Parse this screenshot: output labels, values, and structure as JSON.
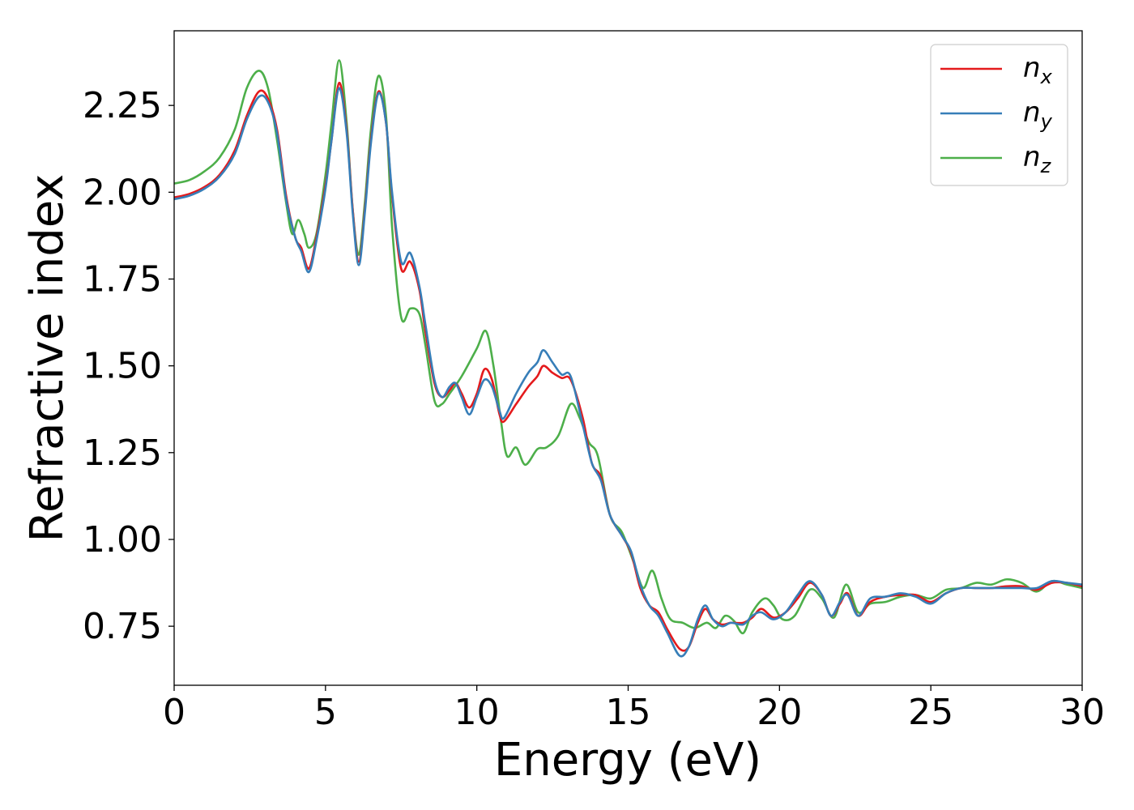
{
  "chart_data": {
    "type": "line",
    "title": "",
    "xlabel": "Energy (eV)",
    "ylabel": "Refractive index",
    "xlim": [
      0,
      30
    ],
    "ylim": [
      0.58,
      2.465
    ],
    "xticks": [
      0,
      5,
      10,
      15,
      20,
      25,
      30
    ],
    "xtick_labels": [
      "0",
      "5",
      "10",
      "15",
      "20",
      "25",
      "30"
    ],
    "yticks": [
      0.75,
      1.0,
      1.25,
      1.5,
      1.75,
      2.0,
      2.25
    ],
    "ytick_labels": [
      "0.75",
      "1.00",
      "1.25",
      "1.50",
      "1.75",
      "2.00",
      "2.25"
    ],
    "grid": false,
    "legend_position": "top-right",
    "series": [
      {
        "name": "n_x",
        "label_base": "n",
        "label_sub": "x",
        "color": "#e41a1c",
        "points": [
          [
            0,
            1.985
          ],
          [
            0.5,
            1.995
          ],
          [
            1.0,
            2.015
          ],
          [
            1.5,
            2.05
          ],
          [
            2.0,
            2.12
          ],
          [
            2.4,
            2.22
          ],
          [
            2.8,
            2.29
          ],
          [
            3.1,
            2.27
          ],
          [
            3.4,
            2.18
          ],
          [
            3.7,
            1.99
          ],
          [
            4.0,
            1.87
          ],
          [
            4.2,
            1.84
          ],
          [
            4.45,
            1.78
          ],
          [
            4.7,
            1.87
          ],
          [
            5.0,
            2.02
          ],
          [
            5.2,
            2.15
          ],
          [
            5.45,
            2.315
          ],
          [
            5.7,
            2.18
          ],
          [
            5.9,
            1.95
          ],
          [
            6.1,
            1.8
          ],
          [
            6.3,
            1.95
          ],
          [
            6.5,
            2.15
          ],
          [
            6.75,
            2.29
          ],
          [
            7.0,
            2.2
          ],
          [
            7.2,
            1.99
          ],
          [
            7.5,
            1.78
          ],
          [
            7.8,
            1.8
          ],
          [
            8.1,
            1.72
          ],
          [
            8.3,
            1.6
          ],
          [
            8.6,
            1.45
          ],
          [
            8.85,
            1.41
          ],
          [
            9.1,
            1.43
          ],
          [
            9.3,
            1.45
          ],
          [
            9.5,
            1.42
          ],
          [
            9.75,
            1.38
          ],
          [
            10.0,
            1.42
          ],
          [
            10.25,
            1.49
          ],
          [
            10.5,
            1.46
          ],
          [
            10.75,
            1.36
          ],
          [
            10.9,
            1.34
          ],
          [
            11.3,
            1.39
          ],
          [
            11.7,
            1.44
          ],
          [
            12.0,
            1.47
          ],
          [
            12.2,
            1.5
          ],
          [
            12.5,
            1.48
          ],
          [
            12.8,
            1.465
          ],
          [
            13.1,
            1.46
          ],
          [
            13.5,
            1.35
          ],
          [
            13.8,
            1.22
          ],
          [
            14.1,
            1.18
          ],
          [
            14.4,
            1.07
          ],
          [
            14.8,
            1.01
          ],
          [
            15.1,
            0.96
          ],
          [
            15.4,
            0.86
          ],
          [
            15.7,
            0.81
          ],
          [
            16.0,
            0.79
          ],
          [
            16.3,
            0.74
          ],
          [
            16.7,
            0.685
          ],
          [
            17.0,
            0.69
          ],
          [
            17.3,
            0.76
          ],
          [
            17.55,
            0.8
          ],
          [
            17.8,
            0.77
          ],
          [
            18.1,
            0.755
          ],
          [
            18.4,
            0.76
          ],
          [
            18.8,
            0.76
          ],
          [
            19.1,
            0.775
          ],
          [
            19.4,
            0.8
          ],
          [
            19.8,
            0.775
          ],
          [
            20.2,
            0.79
          ],
          [
            20.6,
            0.83
          ],
          [
            21.0,
            0.875
          ],
          [
            21.4,
            0.84
          ],
          [
            21.7,
            0.78
          ],
          [
            22.0,
            0.815
          ],
          [
            22.25,
            0.845
          ],
          [
            22.6,
            0.78
          ],
          [
            23.0,
            0.82
          ],
          [
            23.5,
            0.835
          ],
          [
            24.0,
            0.84
          ],
          [
            24.5,
            0.84
          ],
          [
            25.0,
            0.82
          ],
          [
            25.5,
            0.845
          ],
          [
            26.0,
            0.86
          ],
          [
            26.5,
            0.86
          ],
          [
            27.0,
            0.86
          ],
          [
            27.5,
            0.865
          ],
          [
            28.0,
            0.865
          ],
          [
            28.5,
            0.855
          ],
          [
            29.0,
            0.875
          ],
          [
            29.5,
            0.875
          ],
          [
            30.0,
            0.865
          ]
        ]
      },
      {
        "name": "n_y",
        "label_base": "n",
        "label_sub": "y",
        "color": "#377eb8",
        "points": [
          [
            0,
            1.98
          ],
          [
            0.5,
            1.99
          ],
          [
            1.0,
            2.01
          ],
          [
            1.5,
            2.045
          ],
          [
            2.0,
            2.11
          ],
          [
            2.4,
            2.21
          ],
          [
            2.8,
            2.275
          ],
          [
            3.1,
            2.26
          ],
          [
            3.4,
            2.17
          ],
          [
            3.7,
            1.98
          ],
          [
            4.0,
            1.87
          ],
          [
            4.2,
            1.83
          ],
          [
            4.45,
            1.77
          ],
          [
            4.7,
            1.86
          ],
          [
            5.0,
            2.01
          ],
          [
            5.2,
            2.15
          ],
          [
            5.45,
            2.3
          ],
          [
            5.7,
            2.17
          ],
          [
            5.9,
            1.94
          ],
          [
            6.1,
            1.79
          ],
          [
            6.3,
            1.94
          ],
          [
            6.5,
            2.14
          ],
          [
            6.75,
            2.285
          ],
          [
            7.0,
            2.2
          ],
          [
            7.2,
            2.0
          ],
          [
            7.5,
            1.8
          ],
          [
            7.8,
            1.825
          ],
          [
            8.1,
            1.73
          ],
          [
            8.3,
            1.62
          ],
          [
            8.6,
            1.46
          ],
          [
            8.85,
            1.41
          ],
          [
            9.1,
            1.44
          ],
          [
            9.3,
            1.45
          ],
          [
            9.5,
            1.41
          ],
          [
            9.75,
            1.36
          ],
          [
            10.0,
            1.41
          ],
          [
            10.25,
            1.46
          ],
          [
            10.5,
            1.44
          ],
          [
            10.75,
            1.37
          ],
          [
            10.9,
            1.35
          ],
          [
            11.3,
            1.42
          ],
          [
            11.7,
            1.48
          ],
          [
            12.0,
            1.51
          ],
          [
            12.2,
            1.545
          ],
          [
            12.5,
            1.51
          ],
          [
            12.8,
            1.475
          ],
          [
            13.1,
            1.47
          ],
          [
            13.5,
            1.33
          ],
          [
            13.8,
            1.22
          ],
          [
            14.1,
            1.17
          ],
          [
            14.4,
            1.07
          ],
          [
            14.8,
            1.01
          ],
          [
            15.1,
            0.965
          ],
          [
            15.4,
            0.87
          ],
          [
            15.7,
            0.81
          ],
          [
            16.0,
            0.78
          ],
          [
            16.3,
            0.73
          ],
          [
            16.7,
            0.665
          ],
          [
            17.0,
            0.69
          ],
          [
            17.3,
            0.77
          ],
          [
            17.55,
            0.81
          ],
          [
            17.8,
            0.77
          ],
          [
            18.1,
            0.75
          ],
          [
            18.4,
            0.76
          ],
          [
            18.8,
            0.755
          ],
          [
            19.1,
            0.78
          ],
          [
            19.4,
            0.79
          ],
          [
            19.8,
            0.77
          ],
          [
            20.2,
            0.79
          ],
          [
            20.6,
            0.84
          ],
          [
            21.0,
            0.88
          ],
          [
            21.4,
            0.84
          ],
          [
            21.7,
            0.78
          ],
          [
            22.0,
            0.82
          ],
          [
            22.25,
            0.84
          ],
          [
            22.6,
            0.78
          ],
          [
            23.0,
            0.83
          ],
          [
            23.5,
            0.835
          ],
          [
            24.0,
            0.845
          ],
          [
            24.5,
            0.835
          ],
          [
            25.0,
            0.815
          ],
          [
            25.5,
            0.845
          ],
          [
            26.0,
            0.86
          ],
          [
            26.5,
            0.86
          ],
          [
            27.0,
            0.86
          ],
          [
            27.5,
            0.86
          ],
          [
            28.0,
            0.86
          ],
          [
            28.5,
            0.86
          ],
          [
            29.0,
            0.88
          ],
          [
            29.5,
            0.875
          ],
          [
            30.0,
            0.87
          ]
        ]
      },
      {
        "name": "n_z",
        "label_base": "n",
        "label_sub": "z",
        "color": "#4daf4a",
        "points": [
          [
            0,
            2.025
          ],
          [
            0.5,
            2.035
          ],
          [
            1.0,
            2.06
          ],
          [
            1.5,
            2.1
          ],
          [
            2.0,
            2.18
          ],
          [
            2.4,
            2.3
          ],
          [
            2.8,
            2.35
          ],
          [
            3.1,
            2.3
          ],
          [
            3.4,
            2.15
          ],
          [
            3.7,
            1.97
          ],
          [
            3.9,
            1.88
          ],
          [
            4.1,
            1.92
          ],
          [
            4.3,
            1.88
          ],
          [
            4.45,
            1.84
          ],
          [
            4.7,
            1.88
          ],
          [
            5.0,
            2.05
          ],
          [
            5.2,
            2.2
          ],
          [
            5.45,
            2.38
          ],
          [
            5.7,
            2.2
          ],
          [
            5.9,
            1.95
          ],
          [
            6.1,
            1.82
          ],
          [
            6.3,
            1.97
          ],
          [
            6.5,
            2.18
          ],
          [
            6.75,
            2.335
          ],
          [
            7.0,
            2.22
          ],
          [
            7.2,
            1.9
          ],
          [
            7.5,
            1.64
          ],
          [
            7.8,
            1.665
          ],
          [
            8.1,
            1.65
          ],
          [
            8.3,
            1.56
          ],
          [
            8.6,
            1.4
          ],
          [
            8.85,
            1.39
          ],
          [
            9.1,
            1.42
          ],
          [
            9.5,
            1.47
          ],
          [
            10.0,
            1.55
          ],
          [
            10.3,
            1.6
          ],
          [
            10.55,
            1.5
          ],
          [
            10.8,
            1.34
          ],
          [
            11.0,
            1.24
          ],
          [
            11.3,
            1.265
          ],
          [
            11.6,
            1.215
          ],
          [
            12.0,
            1.26
          ],
          [
            12.3,
            1.265
          ],
          [
            12.7,
            1.3
          ],
          [
            13.1,
            1.39
          ],
          [
            13.4,
            1.35
          ],
          [
            13.7,
            1.28
          ],
          [
            14.0,
            1.24
          ],
          [
            14.4,
            1.07
          ],
          [
            14.8,
            1.02
          ],
          [
            15.2,
            0.93
          ],
          [
            15.5,
            0.86
          ],
          [
            15.8,
            0.91
          ],
          [
            16.1,
            0.83
          ],
          [
            16.4,
            0.77
          ],
          [
            16.8,
            0.76
          ],
          [
            17.2,
            0.745
          ],
          [
            17.6,
            0.76
          ],
          [
            17.9,
            0.745
          ],
          [
            18.2,
            0.78
          ],
          [
            18.5,
            0.765
          ],
          [
            18.8,
            0.73
          ],
          [
            19.1,
            0.79
          ],
          [
            19.5,
            0.83
          ],
          [
            19.8,
            0.81
          ],
          [
            20.1,
            0.77
          ],
          [
            20.5,
            0.78
          ],
          [
            21.0,
            0.855
          ],
          [
            21.4,
            0.83
          ],
          [
            21.8,
            0.775
          ],
          [
            22.2,
            0.87
          ],
          [
            22.6,
            0.79
          ],
          [
            23.0,
            0.815
          ],
          [
            23.5,
            0.82
          ],
          [
            24.0,
            0.835
          ],
          [
            24.5,
            0.84
          ],
          [
            25.0,
            0.83
          ],
          [
            25.5,
            0.855
          ],
          [
            26.0,
            0.86
          ],
          [
            26.5,
            0.875
          ],
          [
            27.0,
            0.87
          ],
          [
            27.5,
            0.885
          ],
          [
            28.0,
            0.875
          ],
          [
            28.5,
            0.85
          ],
          [
            29.0,
            0.88
          ],
          [
            29.5,
            0.87
          ],
          [
            30.0,
            0.86
          ]
        ]
      }
    ]
  }
}
